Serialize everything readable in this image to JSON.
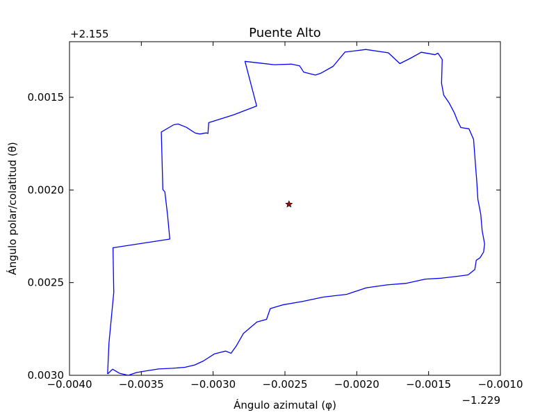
{
  "chart_data": {
    "type": "line",
    "title": "Puente Alto",
    "xlabel": "Ángulo azimutal (φ)",
    "ylabel": "Ángulo polar/colatitud (θ)",
    "x_offset_label": "−1.229",
    "y_offset_label": "+2.155",
    "xlim": [
      -0.004,
      -0.001
    ],
    "ylim_display": [
      0.003,
      0.0012
    ],
    "y_inverted": true,
    "grid": false,
    "x_ticks": [
      -0.004,
      -0.0035,
      -0.003,
      -0.0025,
      -0.002,
      -0.0015,
      -0.001
    ],
    "x_tick_labels": [
      "−0.0040",
      "−0.0035",
      "−0.0030",
      "−0.0025",
      "−0.0020",
      "−0.0015",
      "−0.0010"
    ],
    "y_ticks": [
      0.0015,
      0.002,
      0.0025,
      0.003
    ],
    "y_tick_labels": [
      "0.0015",
      "0.0020",
      "0.0025",
      "0.0030"
    ],
    "series": [
      {
        "color": "#0000ff",
        "marker": "none",
        "points": [
          [
            -0.003735,
            0.002993
          ],
          [
            -0.003725,
            0.002825
          ],
          [
            -0.003692,
            0.002553
          ],
          [
            -0.003697,
            0.002312
          ],
          [
            -0.003302,
            0.002265
          ],
          [
            -0.003317,
            0.002139
          ],
          [
            -0.003336,
            0.00201
          ],
          [
            -0.00335,
            0.001998
          ],
          [
            -0.003361,
            0.001687
          ],
          [
            -0.003274,
            0.001648
          ],
          [
            -0.003244,
            0.001644
          ],
          [
            -0.003186,
            0.001662
          ],
          [
            -0.003124,
            0.001693
          ],
          [
            -0.003092,
            0.001698
          ],
          [
            -0.003048,
            0.001692
          ],
          [
            -0.003036,
            0.001695
          ],
          [
            -0.003031,
            0.001637
          ],
          [
            -0.002856,
            0.001594
          ],
          [
            -0.002697,
            0.001547
          ],
          [
            -0.002778,
            0.001306
          ],
          [
            -0.002576,
            0.001324
          ],
          [
            -0.002455,
            0.001321
          ],
          [
            -0.002398,
            0.00133
          ],
          [
            -0.00237,
            0.001364
          ],
          [
            -0.002288,
            0.00138
          ],
          [
            -0.00225,
            0.00137
          ],
          [
            -0.002165,
            0.001333
          ],
          [
            -0.002082,
            0.001256
          ],
          [
            -0.001937,
            0.001242
          ],
          [
            -0.00178,
            0.00126
          ],
          [
            -0.0017,
            0.001318
          ],
          [
            -0.001623,
            0.001288
          ],
          [
            -0.001551,
            0.001257
          ],
          [
            -0.001455,
            0.00127
          ],
          [
            -0.001435,
            0.001262
          ],
          [
            -0.001405,
            0.001296
          ],
          [
            -0.00141,
            0.001424
          ],
          [
            -0.001395,
            0.001488
          ],
          [
            -0.001358,
            0.001529
          ],
          [
            -0.00132,
            0.001585
          ],
          [
            -0.0013,
            0.001624
          ],
          [
            -0.001276,
            0.001663
          ],
          [
            -0.001219,
            0.00167
          ],
          [
            -0.001187,
            0.001727
          ],
          [
            -0.001172,
            0.001882
          ],
          [
            -0.001164,
            0.001959
          ],
          [
            -0.001157,
            0.002051
          ],
          [
            -0.001137,
            0.00213
          ],
          [
            -0.001127,
            0.002221
          ],
          [
            -0.00111,
            0.002291
          ],
          [
            -0.001117,
            0.002335
          ],
          [
            -0.001142,
            0.002366
          ],
          [
            -0.001168,
            0.002379
          ],
          [
            -0.001178,
            0.002429
          ],
          [
            -0.001225,
            0.002458
          ],
          [
            -0.001283,
            0.002464
          ],
          [
            -0.001413,
            0.002476
          ],
          [
            -0.001524,
            0.002481
          ],
          [
            -0.001658,
            0.002504
          ],
          [
            -0.001789,
            0.002512
          ],
          [
            -0.001934,
            0.002528
          ],
          [
            -0.00207,
            0.002563
          ],
          [
            -0.002235,
            0.002578
          ],
          [
            -0.002375,
            0.002601
          ],
          [
            -0.002517,
            0.00262
          ],
          [
            -0.002602,
            0.00264
          ],
          [
            -0.002628,
            0.002698
          ],
          [
            -0.002695,
            0.002712
          ],
          [
            -0.002789,
            0.002774
          ],
          [
            -0.002837,
            0.002839
          ],
          [
            -0.002875,
            0.002881
          ],
          [
            -0.002913,
            0.002869
          ],
          [
            -0.002992,
            0.002885
          ],
          [
            -0.003069,
            0.002923
          ],
          [
            -0.003128,
            0.002944
          ],
          [
            -0.003197,
            0.002957
          ],
          [
            -0.003284,
            0.002962
          ],
          [
            -0.00338,
            0.002966
          ],
          [
            -0.003466,
            0.002976
          ],
          [
            -0.003533,
            0.002985
          ],
          [
            -0.00359,
            0.003
          ],
          [
            -0.00365,
            0.00299
          ],
          [
            -0.0037,
            0.002967
          ],
          [
            -0.003735,
            0.002993
          ]
        ]
      },
      {
        "color": "#aa0000",
        "marker": "star",
        "points": [
          [
            -0.002472,
            0.002077
          ]
        ]
      }
    ]
  }
}
